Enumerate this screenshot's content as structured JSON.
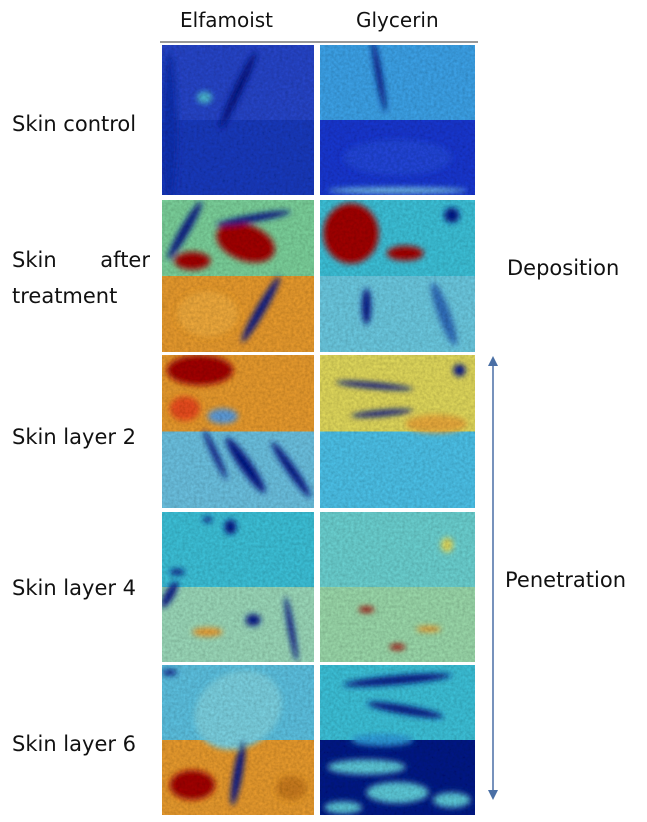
{
  "columns": [
    "Elfamoist",
    "Glycerin"
  ],
  "rows": [
    "Skin control",
    "Skin after treatment",
    "Skin layer 2",
    "Skin layer 4",
    "Skin layer 6"
  ],
  "side_labels": [
    "Deposition",
    "Penetration"
  ]
}
